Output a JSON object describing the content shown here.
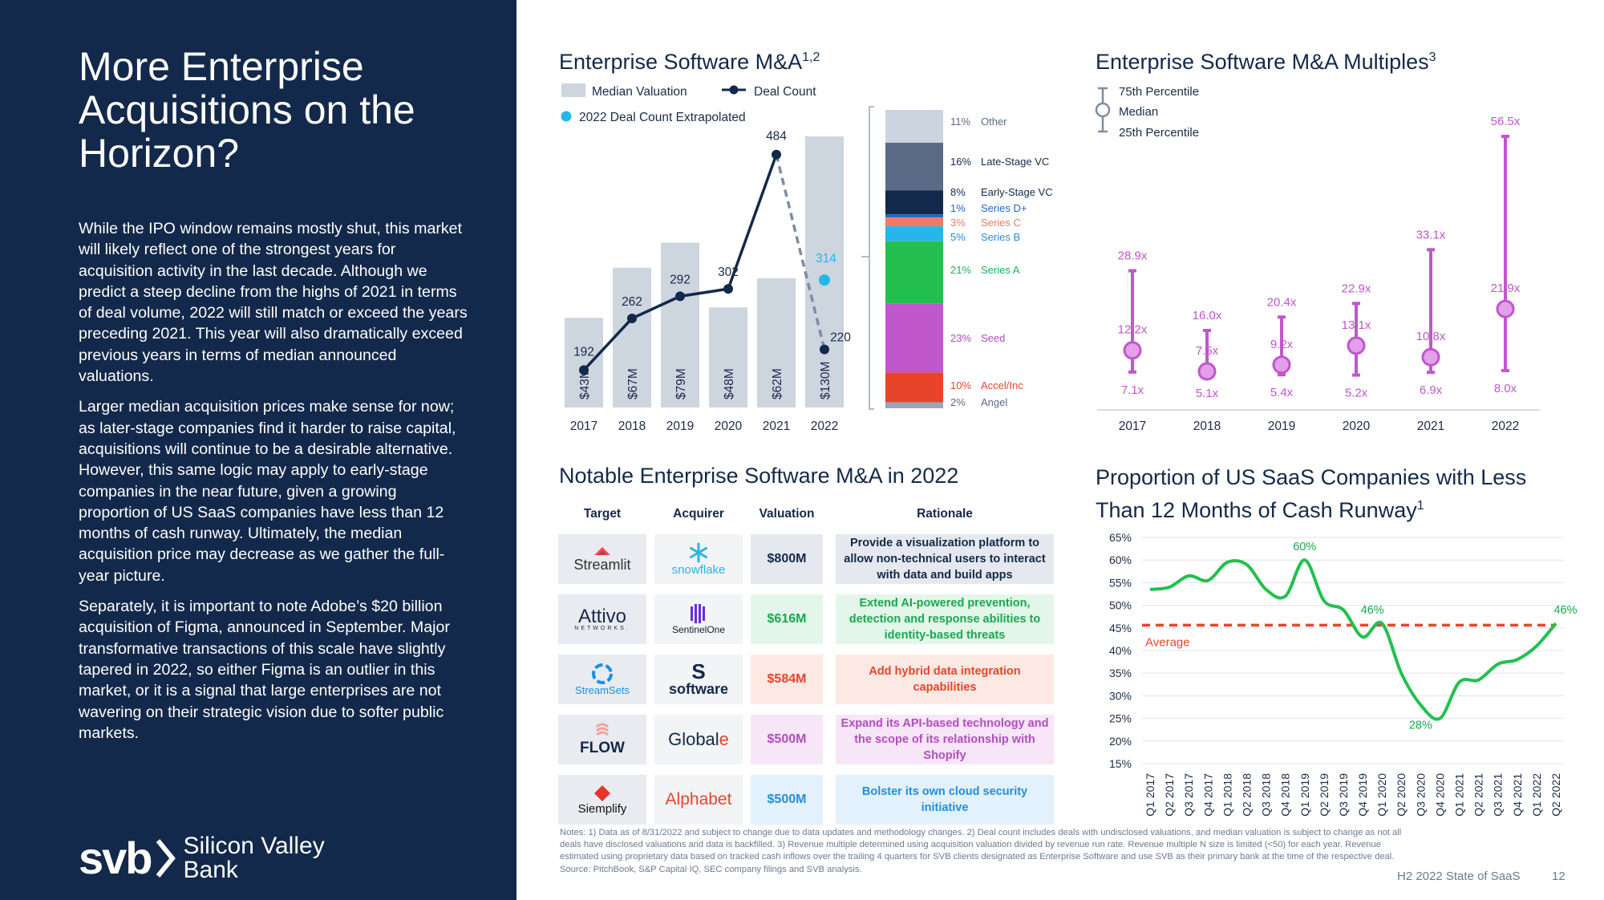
{
  "left": {
    "headline": "More Enterprise Acquisitions on the Horizon?",
    "paragraphs": [
      "While the IPO window remains mostly shut, this market will likely reflect one of the strongest years for acquisition activity in the last decade. Although we predict a steep decline from the highs of 2021 in terms of deal volume, 2022 will still match or exceed the years preceding 2021. This year will also dramatically exceed previous years in terms of median announced valuations.",
      "Larger median acquisition prices make sense for now; as later-stage companies find it harder to raise capital, acquisitions will continue to be a desirable alternative. However, this same logic may apply to early-stage companies in the near future, given a growing proportion of US SaaS companies have less than 12 months of cash runway. Ultimately, the median acquisition price may decrease as we gather the full-year picture.",
      "Separately, it is important to note Adobe’s $20 billion acquisition of Figma, announced in September. Major transformative transactions of this scale have slightly tapered in 2022, so either Figma is an outlier in this market, or it is a signal that large enterprises are not wavering on their strategic vision due to softer public markets."
    ],
    "logo_mark": "svb",
    "logo_line1": "Silicon Valley",
    "logo_line2": "Bank"
  },
  "ma_chart": {
    "title": "Enterprise Software M&A",
    "title_sup": "1,2",
    "legend": [
      "Median Valuation",
      "Deal Count",
      "2022 Deal Count Extrapolated"
    ],
    "stack_labels": [
      {
        "pct": "11%",
        "name": "Other",
        "color": "#5b6b86"
      },
      {
        "pct": "16%",
        "name": "Late-Stage VC",
        "color": "#13294b"
      },
      {
        "pct": "8%",
        "name": "Early-Stage VC",
        "color": "#13294b"
      },
      {
        "pct": "1%",
        "name": "Series D+",
        "color": "#1e66c8"
      },
      {
        "pct": "3%",
        "name": "Series C",
        "color": "#f07a62"
      },
      {
        "pct": "5%",
        "name": "Series B",
        "color": "#1f8fe0"
      },
      {
        "pct": "21%",
        "name": "Series A",
        "color": "#19b35a"
      },
      {
        "pct": "23%",
        "name": "Seed",
        "color": "#b24dbf"
      },
      {
        "pct": "10%",
        "name": "Accel/Inc",
        "color": "#e8442a"
      },
      {
        "pct": "2%",
        "name": "Angel",
        "color": "#5b6b86"
      }
    ]
  },
  "multiples_chart": {
    "title": "Enterprise Software M&A Multiples",
    "title_sup": "3",
    "legend": [
      "75th Percentile",
      "Median",
      "25th Percentile"
    ]
  },
  "runway_chart": {
    "title_line1": "Proportion of US SaaS Companies with Less",
    "title_line2": "Than 12 Months of Cash Runway",
    "title_sup": "1",
    "average_label": "Average"
  },
  "deals": {
    "title": "Notable Enterprise Software M&A in 2022",
    "headers": [
      "Target",
      "Acquirer",
      "Valuation",
      "Rationale"
    ],
    "rows": [
      {
        "target": "Streamlit",
        "acquirer": "snowflake",
        "valuation": "$800M",
        "rationale": "Provide a visualization platform to allow non-technical users to interact with data and build apps",
        "color": "#13294b",
        "bg": "#e5e9ef"
      },
      {
        "target": "Attivo",
        "target_sub": "NETWORKS.",
        "acquirer": "SentinelOne",
        "valuation": "$616M",
        "rationale": "Extend AI-powered prevention, detection and response abilities to identity-based threats",
        "color": "#18a850",
        "bg": "#e3f6e9"
      },
      {
        "target": "StreamSets",
        "acquirer": "software",
        "valuation": "$584M",
        "rationale": "Add hybrid data integration capabilities",
        "color": "#e8442a",
        "bg": "#fde9e4"
      },
      {
        "target": "FLOW",
        "acquirer": "Globale",
        "valuation": "$500M",
        "rationale": "Expand its API-based technology and the scope of its relationship with Shopify",
        "color": "#b24dbf",
        "bg": "#f6e6f7"
      },
      {
        "target": "Siemplify",
        "acquirer": "Alphabet",
        "valuation": "$500M",
        "rationale": "Bolster its own cloud security initiative",
        "color": "#1f8fe0",
        "bg": "#e3f1fc"
      }
    ]
  },
  "footer": {
    "notes": "Notes: 1) Data as of 8/31/2022 and subject to change due to data updates and methodology changes. 2) Deal count includes deals with undisclosed valuations, and median valuation is subject to change as not all deals have disclosed valuations and data is backfilled. 3) Revenue multiple determined using acquisition valuation divided by revenue run rate. Revenue multiple N size is limited (<50) for each year. Revenue estimated using proprietary data based on tracked cash inflows over the trailing 4 quarters for SVB clients designated as Enterprise Software and use SVB as their primary bank at the time of the respective deal.",
    "source": "Source: PitchBook, S&P Capital IQ, SEC company filings and SVB analysis.",
    "report": "H2 2022 State of SaaS",
    "page": "12"
  },
  "colors": {
    "navy": "#13294b",
    "bar_gray": "#cdd5df",
    "cyan": "#27b6ea",
    "magenta": "#c057cc",
    "green": "#23c04f",
    "red": "#e8442a"
  },
  "chart_data": [
    {
      "type": "bar",
      "name": "ma_chart",
      "categories": [
        "2017",
        "2018",
        "2019",
        "2020",
        "2021",
        "2022"
      ],
      "series": [
        {
          "name": "Median Valuation",
          "values": [
            43,
            67,
            79,
            48,
            62,
            130
          ],
          "labels": [
            "$43M",
            "$67M",
            "$79M",
            "$48M",
            "$62M",
            "$130M"
          ]
        },
        {
          "name": "Deal Count",
          "values": [
            192,
            262,
            292,
            302,
            484,
            220
          ]
        },
        {
          "name": "2022 Deal Count Extrapolated",
          "values": [
            null,
            null,
            null,
            null,
            null,
            314
          ]
        }
      ]
    },
    {
      "type": "bar",
      "name": "stage_mix",
      "categories": [
        "Other",
        "Late-Stage VC",
        "Early-Stage VC",
        "Series D+",
        "Series C",
        "Series B",
        "Series A",
        "Seed",
        "Accel/Inc",
        "Angel"
      ],
      "values": [
        11,
        16,
        8,
        1,
        3,
        5,
        21,
        23,
        10,
        2
      ],
      "colors": [
        "#ccd5df",
        "#5b6b86",
        "#13294b",
        "#1e66c8",
        "#f07a62",
        "#27b6ea",
        "#23c04f",
        "#c057cc",
        "#e8442a",
        "#9aa6b6"
      ]
    },
    {
      "type": "scatter",
      "name": "multiples_chart",
      "categories": [
        "2017",
        "2018",
        "2019",
        "2020",
        "2021",
        "2022"
      ],
      "p75": [
        28.9,
        16.0,
        20.4,
        22.9,
        33.1,
        56.5
      ],
      "median": [
        12.2,
        7.5,
        9.2,
        13.1,
        10.8,
        21.9
      ],
      "p25": [
        7.1,
        5.1,
        5.4,
        5.2,
        6.9,
        8.0
      ],
      "p75_labels": [
        "28.9x",
        "16.0x",
        "20.4x",
        "22.9x",
        "33.1x",
        "56.5x"
      ],
      "median_labels": [
        "12.2x",
        "7.5x",
        "9.2x",
        "13.1x",
        "10.8x",
        "21.9x"
      ],
      "p25_labels": [
        "7.1x",
        "5.1x",
        "5.4x",
        "5.2x",
        "6.9x",
        "8.0x"
      ]
    },
    {
      "type": "line",
      "name": "runway_chart",
      "x": [
        "Q1 2017",
        "Q2 2017",
        "Q3 2017",
        "Q4 2017",
        "Q1 2018",
        "Q2 2018",
        "Q3 2018",
        "Q4 2018",
        "Q1 2019",
        "Q2 2019",
        "Q3 2019",
        "Q4 2019",
        "Q1 2020",
        "Q2 2020",
        "Q3 2020",
        "Q4 2020",
        "Q1 2021",
        "Q2 2021",
        "Q3 2021",
        "Q4 2021",
        "Q1 2022",
        "Q2 2022"
      ],
      "values": [
        53.5,
        54,
        56.5,
        55.5,
        59.5,
        59,
        53.5,
        52,
        60,
        51,
        49,
        43,
        46,
        35,
        28,
        25,
        33,
        33.5,
        37,
        38,
        41,
        46
      ],
      "average": 45.6,
      "point_labels": [
        {
          "index": 8,
          "text": "60%"
        },
        {
          "index": 12,
          "text": "46%"
        },
        {
          "index": 14,
          "text": "28%"
        },
        {
          "index": 21,
          "text": "46%"
        }
      ],
      "yticks": [
        "15%",
        "20%",
        "25%",
        "30%",
        "35%",
        "40%",
        "45%",
        "50%",
        "55%",
        "60%",
        "65%"
      ],
      "ylim": [
        15,
        65
      ]
    }
  ]
}
